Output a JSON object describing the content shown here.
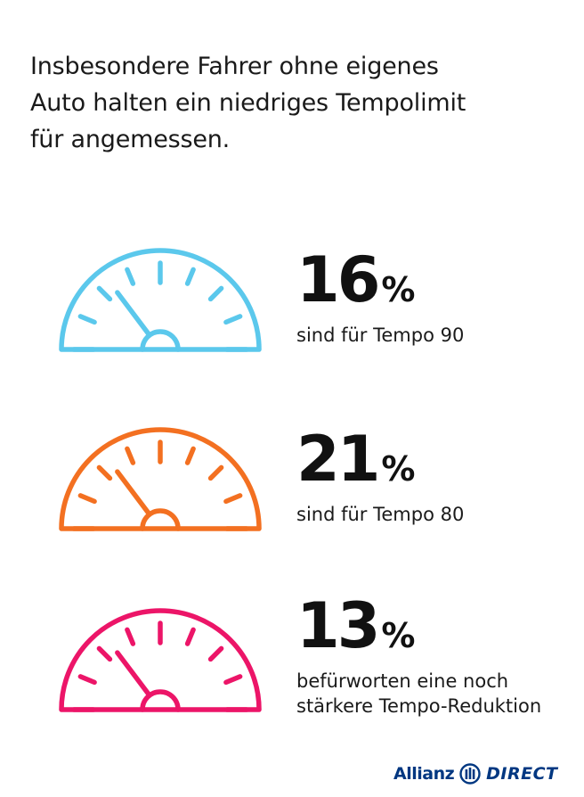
{
  "headline": {
    "line1": "Insbesondere Fahrer ohne eigenes",
    "line2": "Auto halten ein niedriges Tempolimit",
    "line3": "für angemessen."
  },
  "stats": [
    {
      "value": "16",
      "unit": "%",
      "label_line1": "sind für Tempo 90",
      "label_line2": "",
      "color": "#5BC8EC",
      "icon": "speedometer-icon"
    },
    {
      "value": "21",
      "unit": "%",
      "label_line1": "sind für Tempo 80",
      "label_line2": "",
      "color": "#F37021",
      "icon": "speedometer-icon"
    },
    {
      "value": "13",
      "unit": "%",
      "label_line1": "befürworten eine noch",
      "label_line2": "stärkere Tempo-Reduktion",
      "color": "#EC1568",
      "icon": "speedometer-icon"
    }
  ],
  "logo": {
    "brand": "Allianz",
    "product": "DIRECT",
    "brand_color": "#003781",
    "icon": "allianz-eagle-icon"
  }
}
